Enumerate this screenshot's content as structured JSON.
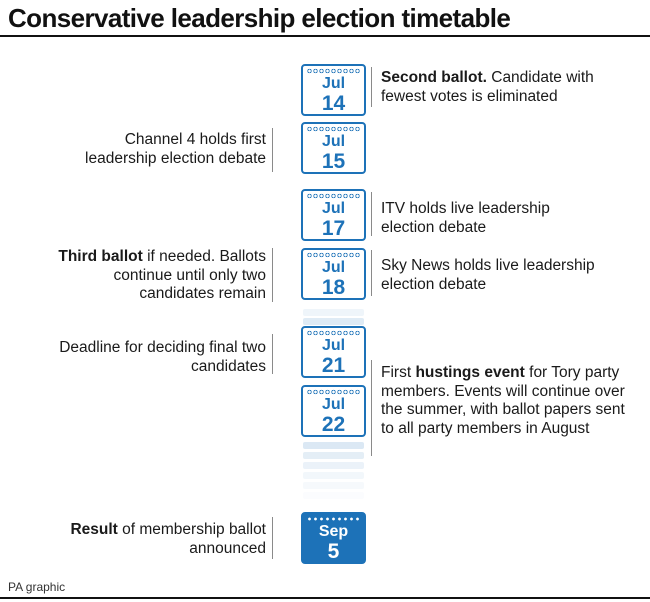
{
  "title": "Conservative leadership election timetable",
  "source": "PA graphic",
  "colors": {
    "accent": "#1d72b8",
    "text": "#1a1a1a",
    "rule": "#111111",
    "divider": "#8a8a8a"
  },
  "events": [
    {
      "month": "Jul",
      "day": "14",
      "side": "right",
      "bold": "Second ballot.",
      "text": " Candidate with fewest votes is eliminated",
      "text_after": ""
    },
    {
      "month": "Jul",
      "day": "15",
      "side": "left",
      "bold": "",
      "text": "Channel 4 holds first leadership election debate",
      "text_after": ""
    },
    {
      "month": "Jul",
      "day": "17",
      "side": "right",
      "bold": "",
      "text": "ITV holds live leadership election debate",
      "text_after": ""
    },
    {
      "month": "Jul",
      "day": "18",
      "side": "left",
      "bold": "Third ballot",
      "text": " if needed. Ballots continue until only two candidates remain",
      "text_after": ""
    },
    {
      "month": "Jul",
      "day": "18",
      "side": "right",
      "bold": "",
      "text": "Sky News holds live leadership election debate",
      "text_after": ""
    },
    {
      "month": "Jul",
      "day": "21",
      "side": "left",
      "bold": "",
      "text": "Deadline for deciding final two candidates",
      "text_after": ""
    },
    {
      "month": "Jul",
      "day": "22",
      "side": "right",
      "text_before": "First ",
      "bold": "hustings event",
      "text": " for Tory party members. Events will continue over the summer, with ballot papers sent to all party members in August"
    },
    {
      "month": "Sep",
      "day": "5",
      "side": "left",
      "bold": "Result",
      "text": " of membership ballot announced",
      "text_after": ""
    }
  ]
}
